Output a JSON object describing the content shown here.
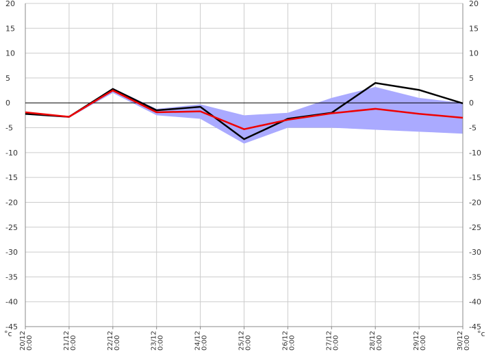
{
  "chart_data": {
    "type": "line",
    "unit": "°c",
    "categories": [
      [
        "20/12",
        "0:00"
      ],
      [
        "21/12",
        "0:00"
      ],
      [
        "22/12",
        "0:00"
      ],
      [
        "23/12",
        "0:00"
      ],
      [
        "24/12",
        "0:00"
      ],
      [
        "25/12",
        "0:00"
      ],
      [
        "26/12",
        "0:00"
      ],
      [
        "27/12",
        "0:00"
      ],
      [
        "28/12",
        "0:00"
      ],
      [
        "29/12",
        "0:00"
      ],
      [
        "30/12",
        "0:00"
      ]
    ],
    "ylim": [
      -45,
      20
    ],
    "yticks": [
      20,
      15,
      10,
      5,
      0,
      -5,
      -10,
      -15,
      -20,
      -25,
      -30,
      -35,
      -40,
      -45
    ],
    "grid": true,
    "band": {
      "upper": [
        -2.0,
        -2.7,
        3.0,
        -1.2,
        -0.3,
        -2.5,
        -2.0,
        1.0,
        3.2,
        1.0,
        0.0
      ],
      "lower": [
        -2.4,
        -3.0,
        2.0,
        -2.5,
        -3.2,
        -8.2,
        -5.0,
        -5.0,
        -5.4,
        -5.8,
        -6.2
      ]
    },
    "series": [
      {
        "values": [
          -2.2,
          -2.8,
          2.8,
          -1.5,
          -0.8,
          -7.3,
          -3.2,
          -2.0,
          4.0,
          2.6,
          -0.1
        ]
      },
      {
        "values": [
          -1.9,
          -2.8,
          2.5,
          -1.9,
          -1.7,
          -5.3,
          -3.4,
          -2.1,
          -1.2,
          -2.2,
          -3.0
        ]
      }
    ],
    "colors": {
      "band": "#aaaaff",
      "series_0": "#000000",
      "series_1": "#ee0000",
      "grid": "#cccccc",
      "zero_line": "#000000"
    }
  }
}
